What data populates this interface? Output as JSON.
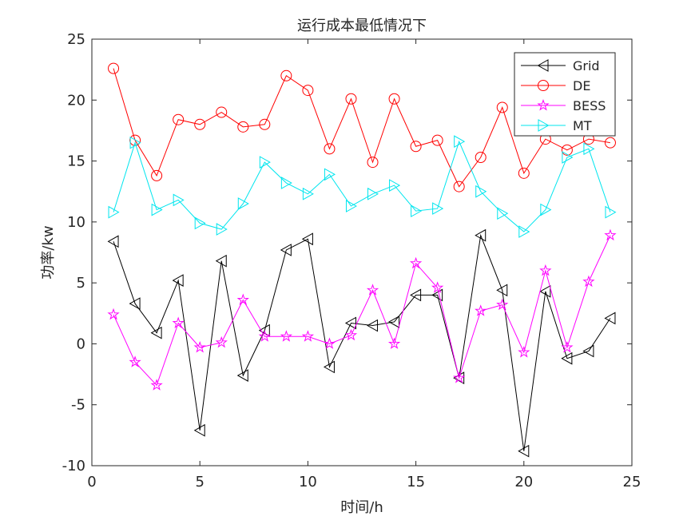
{
  "chart_data": {
    "type": "line",
    "title": "运行成本最低情况下",
    "xlabel": "时间/h",
    "ylabel": "功率/kw",
    "xlim": [
      0,
      25
    ],
    "ylim": [
      -10,
      25
    ],
    "xticks": [
      0,
      5,
      10,
      15,
      20,
      25
    ],
    "yticks": [
      -10,
      -5,
      0,
      5,
      10,
      15,
      20,
      25
    ],
    "grid": false,
    "legend_position": "top-right",
    "x": [
      1,
      2,
      3,
      4,
      5,
      6,
      7,
      8,
      9,
      10,
      11,
      12,
      13,
      14,
      15,
      16,
      17,
      18,
      19,
      20,
      21,
      22,
      23,
      24
    ],
    "series": [
      {
        "name": "Grid",
        "color": "#000000",
        "marker": "triangle-left",
        "values": [
          8.4,
          3.3,
          0.9,
          5.2,
          -7.1,
          6.8,
          -2.6,
          1.1,
          7.7,
          8.6,
          -1.9,
          1.7,
          1.5,
          1.8,
          4.0,
          4.0,
          -2.8,
          8.9,
          4.4,
          -8.8,
          4.3,
          -1.2,
          -0.6,
          2.1
        ]
      },
      {
        "name": "DE",
        "color": "#ff0000",
        "marker": "circle",
        "values": [
          22.6,
          16.7,
          13.8,
          18.4,
          18.0,
          19.0,
          17.8,
          18.0,
          22.0,
          20.8,
          16.0,
          20.1,
          14.9,
          20.1,
          16.2,
          16.7,
          12.9,
          15.3,
          19.4,
          14.0,
          16.8,
          15.9,
          16.8,
          16.5
        ]
      },
      {
        "name": "BESS",
        "color": "#ff00ff",
        "marker": "star",
        "values": [
          2.4,
          -1.5,
          -3.4,
          1.7,
          -0.3,
          0.1,
          3.6,
          0.6,
          0.6,
          0.6,
          0.0,
          0.7,
          4.4,
          0.0,
          6.6,
          4.6,
          -2.8,
          2.7,
          3.2,
          -0.7,
          6.0,
          -0.3,
          5.1,
          8.9
        ]
      },
      {
        "name": "MT",
        "color": "#00e5ee",
        "marker": "triangle-right",
        "values": [
          10.8,
          16.5,
          11.0,
          11.8,
          9.9,
          9.4,
          11.5,
          14.9,
          13.2,
          12.3,
          13.9,
          11.3,
          12.3,
          13.0,
          10.9,
          11.1,
          16.6,
          12.5,
          10.7,
          9.2,
          11.0,
          15.3,
          16.0,
          10.8
        ]
      }
    ]
  }
}
